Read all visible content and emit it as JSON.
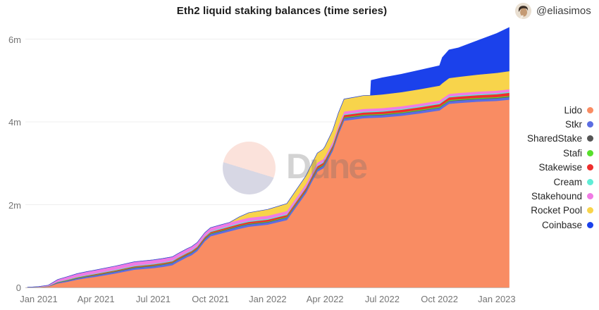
{
  "header": {
    "title": "Eth2 liquid staking balances (time series)",
    "author_handle": "@eliasimos"
  },
  "watermark": {
    "text": "Dune"
  },
  "colors": {
    "grid": "#efefef",
    "axis_line": "#c9c0bd",
    "axis_text": "#757575",
    "title_text": "#1c1c1c",
    "legend_text": "#262626"
  },
  "chart_data": {
    "type": "area",
    "stacked": true,
    "title": "Eth2 liquid staking balances (time series)",
    "xlabel": "",
    "ylabel": "",
    "x_unit": "months since Jan 2021",
    "xlim": [
      -0.6,
      24.65
    ],
    "ylim": [
      0,
      6.4
    ],
    "grid": "horizontal",
    "legend_position": "right",
    "y_ticks": [
      {
        "v": 0,
        "label": "0"
      },
      {
        "v": 2,
        "label": "2m"
      },
      {
        "v": 4,
        "label": "4m"
      },
      {
        "v": 6,
        "label": "6m"
      }
    ],
    "x_ticks": [
      {
        "t": 0,
        "label": "Jan 2021"
      },
      {
        "t": 3,
        "label": "Apr 2021"
      },
      {
        "t": 6,
        "label": "Jul 2021"
      },
      {
        "t": 9,
        "label": "Oct 2021"
      },
      {
        "t": 12,
        "label": "Jan 2022"
      },
      {
        "t": 15,
        "label": "Apr 2022"
      },
      {
        "t": 18,
        "label": "Jul 2022"
      },
      {
        "t": 21,
        "label": "Oct 2022"
      },
      {
        "t": 24,
        "label": "Jan 2023"
      }
    ],
    "x": [
      -0.6,
      0,
      0.5,
      1,
      1.5,
      2,
      2.5,
      3,
      4,
      5,
      6,
      6.5,
      7,
      7.3,
      7.8,
      8,
      8.3,
      8.7,
      9,
      9.5,
      10,
      10.5,
      11,
      12,
      13,
      14,
      14.3,
      14.6,
      14.9,
      15,
      15.4,
      15.7,
      16,
      17,
      17.38,
      17.42,
      18,
      19,
      20,
      21,
      21.15,
      21.5,
      22,
      23,
      24,
      24.65
    ],
    "series": [
      {
        "name": "Lido",
        "color": "#F98C63",
        "values": [
          0.003,
          0.01,
          0.02,
          0.1,
          0.14,
          0.19,
          0.23,
          0.26,
          0.34,
          0.43,
          0.47,
          0.5,
          0.54,
          0.62,
          0.74,
          0.78,
          0.88,
          1.12,
          1.24,
          1.3,
          1.36,
          1.42,
          1.47,
          1.52,
          1.63,
          2.28,
          2.55,
          2.8,
          2.88,
          2.95,
          3.3,
          3.7,
          4.03,
          4.09,
          4.1,
          4.1,
          4.11,
          4.15,
          4.21,
          4.28,
          4.33,
          4.44,
          4.46,
          4.49,
          4.51,
          4.54
        ]
      },
      {
        "name": "Stkr",
        "color": "#5C6DE2",
        "values": [
          0,
          0.002,
          0.005,
          0.02,
          0.025,
          0.03,
          0.032,
          0.035,
          0.04,
          0.045,
          0.048,
          0.05,
          0.05,
          0.05,
          0.05,
          0.05,
          0.05,
          0.05,
          0.05,
          0.052,
          0.053,
          0.054,
          0.055,
          0.055,
          0.056,
          0.056,
          0.056,
          0.056,
          0.057,
          0.057,
          0.057,
          0.058,
          0.058,
          0.058,
          0.058,
          0.058,
          0.058,
          0.059,
          0.06,
          0.06,
          0.06,
          0.06,
          0.06,
          0.06,
          0.06,
          0.06
        ]
      },
      {
        "name": "SharedStake",
        "color": "#555555",
        "values": [
          0,
          0.001,
          0.002,
          0.006,
          0.007,
          0.008,
          0.009,
          0.01,
          0.01,
          0.01,
          0.01,
          0.01,
          0.01,
          0.01,
          0.01,
          0.01,
          0.01,
          0.01,
          0.01,
          0.01,
          0.01,
          0.01,
          0.01,
          0.01,
          0.01,
          0.01,
          0.01,
          0.01,
          0.01,
          0.01,
          0.01,
          0.01,
          0.01,
          0.01,
          0.01,
          0.01,
          0.01,
          0.01,
          0.011,
          0.011,
          0.011,
          0.011,
          0.011,
          0.012,
          0.012,
          0.012
        ]
      },
      {
        "name": "Stafi",
        "color": "#57DF2C",
        "values": [
          0,
          0.001,
          0.002,
          0.005,
          0.006,
          0.007,
          0.007,
          0.008,
          0.009,
          0.009,
          0.01,
          0.01,
          0.01,
          0.01,
          0.011,
          0.011,
          0.011,
          0.012,
          0.012,
          0.012,
          0.013,
          0.013,
          0.013,
          0.014,
          0.014,
          0.015,
          0.015,
          0.015,
          0.016,
          0.016,
          0.016,
          0.016,
          0.016,
          0.017,
          0.017,
          0.017,
          0.018,
          0.018,
          0.019,
          0.02,
          0.02,
          0.02,
          0.02,
          0.02,
          0.02,
          0.02
        ]
      },
      {
        "name": "Stakewise",
        "color": "#EE2E2D",
        "values": [
          0,
          0.001,
          0.002,
          0.004,
          0.007,
          0.01,
          0.012,
          0.015,
          0.015,
          0.018,
          0.02,
          0.022,
          0.024,
          0.025,
          0.027,
          0.028,
          0.029,
          0.03,
          0.03,
          0.032,
          0.034,
          0.036,
          0.038,
          0.04,
          0.043,
          0.045,
          0.046,
          0.047,
          0.049,
          0.05,
          0.051,
          0.052,
          0.052,
          0.054,
          0.054,
          0.054,
          0.055,
          0.057,
          0.06,
          0.062,
          0.062,
          0.064,
          0.065,
          0.067,
          0.07,
          0.072
        ]
      },
      {
        "name": "Cream",
        "color": "#5FEDD6",
        "values": [
          0,
          0.002,
          0.004,
          0.008,
          0.01,
          0.012,
          0.013,
          0.015,
          0.016,
          0.017,
          0.018,
          0.018,
          0.019,
          0.019,
          0.019,
          0.02,
          0.02,
          0.02,
          0.02,
          0.021,
          0.021,
          0.021,
          0.022,
          0.022,
          0.022,
          0.022,
          0.022,
          0.022,
          0.022,
          0.022,
          0.022,
          0.022,
          0.022,
          0.022,
          0.022,
          0.022,
          0.022,
          0.023,
          0.023,
          0.023,
          0.023,
          0.024,
          0.024,
          0.024,
          0.025,
          0.025
        ]
      },
      {
        "name": "Stakehound",
        "color": "#F07BE4",
        "values": [
          0,
          0.005,
          0.02,
          0.05,
          0.065,
          0.075,
          0.078,
          0.08,
          0.085,
          0.09,
          0.09,
          0.089,
          0.088,
          0.087,
          0.086,
          0.085,
          0.084,
          0.083,
          0.082,
          0.081,
          0.08,
          0.079,
          0.078,
          0.075,
          0.072,
          0.07,
          0.069,
          0.068,
          0.066,
          0.065,
          0.065,
          0.064,
          0.064,
          0.064,
          0.063,
          0.063,
          0.063,
          0.063,
          0.062,
          0.062,
          0.062,
          0.061,
          0.061,
          0.061,
          0.06,
          0.06
        ]
      },
      {
        "name": "Rocket Pool",
        "color": "#F8D44B",
        "values": [
          0,
          0,
          0,
          0,
          0,
          0,
          0,
          0,
          0,
          0,
          0,
          0,
          0,
          0,
          0,
          0,
          0,
          0,
          0,
          0,
          0,
          0.07,
          0.12,
          0.15,
          0.18,
          0.2,
          0.21,
          0.23,
          0.24,
          0.24,
          0.27,
          0.29,
          0.3,
          0.32,
          0.32,
          0.32,
          0.33,
          0.34,
          0.35,
          0.36,
          0.37,
          0.38,
          0.39,
          0.41,
          0.43,
          0.44
        ]
      },
      {
        "name": "Coinbase",
        "color": "#1B41EB",
        "values": [
          0,
          0,
          0,
          0,
          0,
          0,
          0,
          0,
          0,
          0,
          0,
          0,
          0,
          0,
          0,
          0,
          0,
          0,
          0,
          0,
          0,
          0,
          0,
          0,
          0,
          0,
          0,
          0,
          0,
          0,
          0,
          0,
          0,
          0,
          0,
          0.36,
          0.4,
          0.43,
          0.46,
          0.48,
          0.62,
          0.68,
          0.7,
          0.82,
          0.95,
          1.05
        ]
      }
    ]
  }
}
